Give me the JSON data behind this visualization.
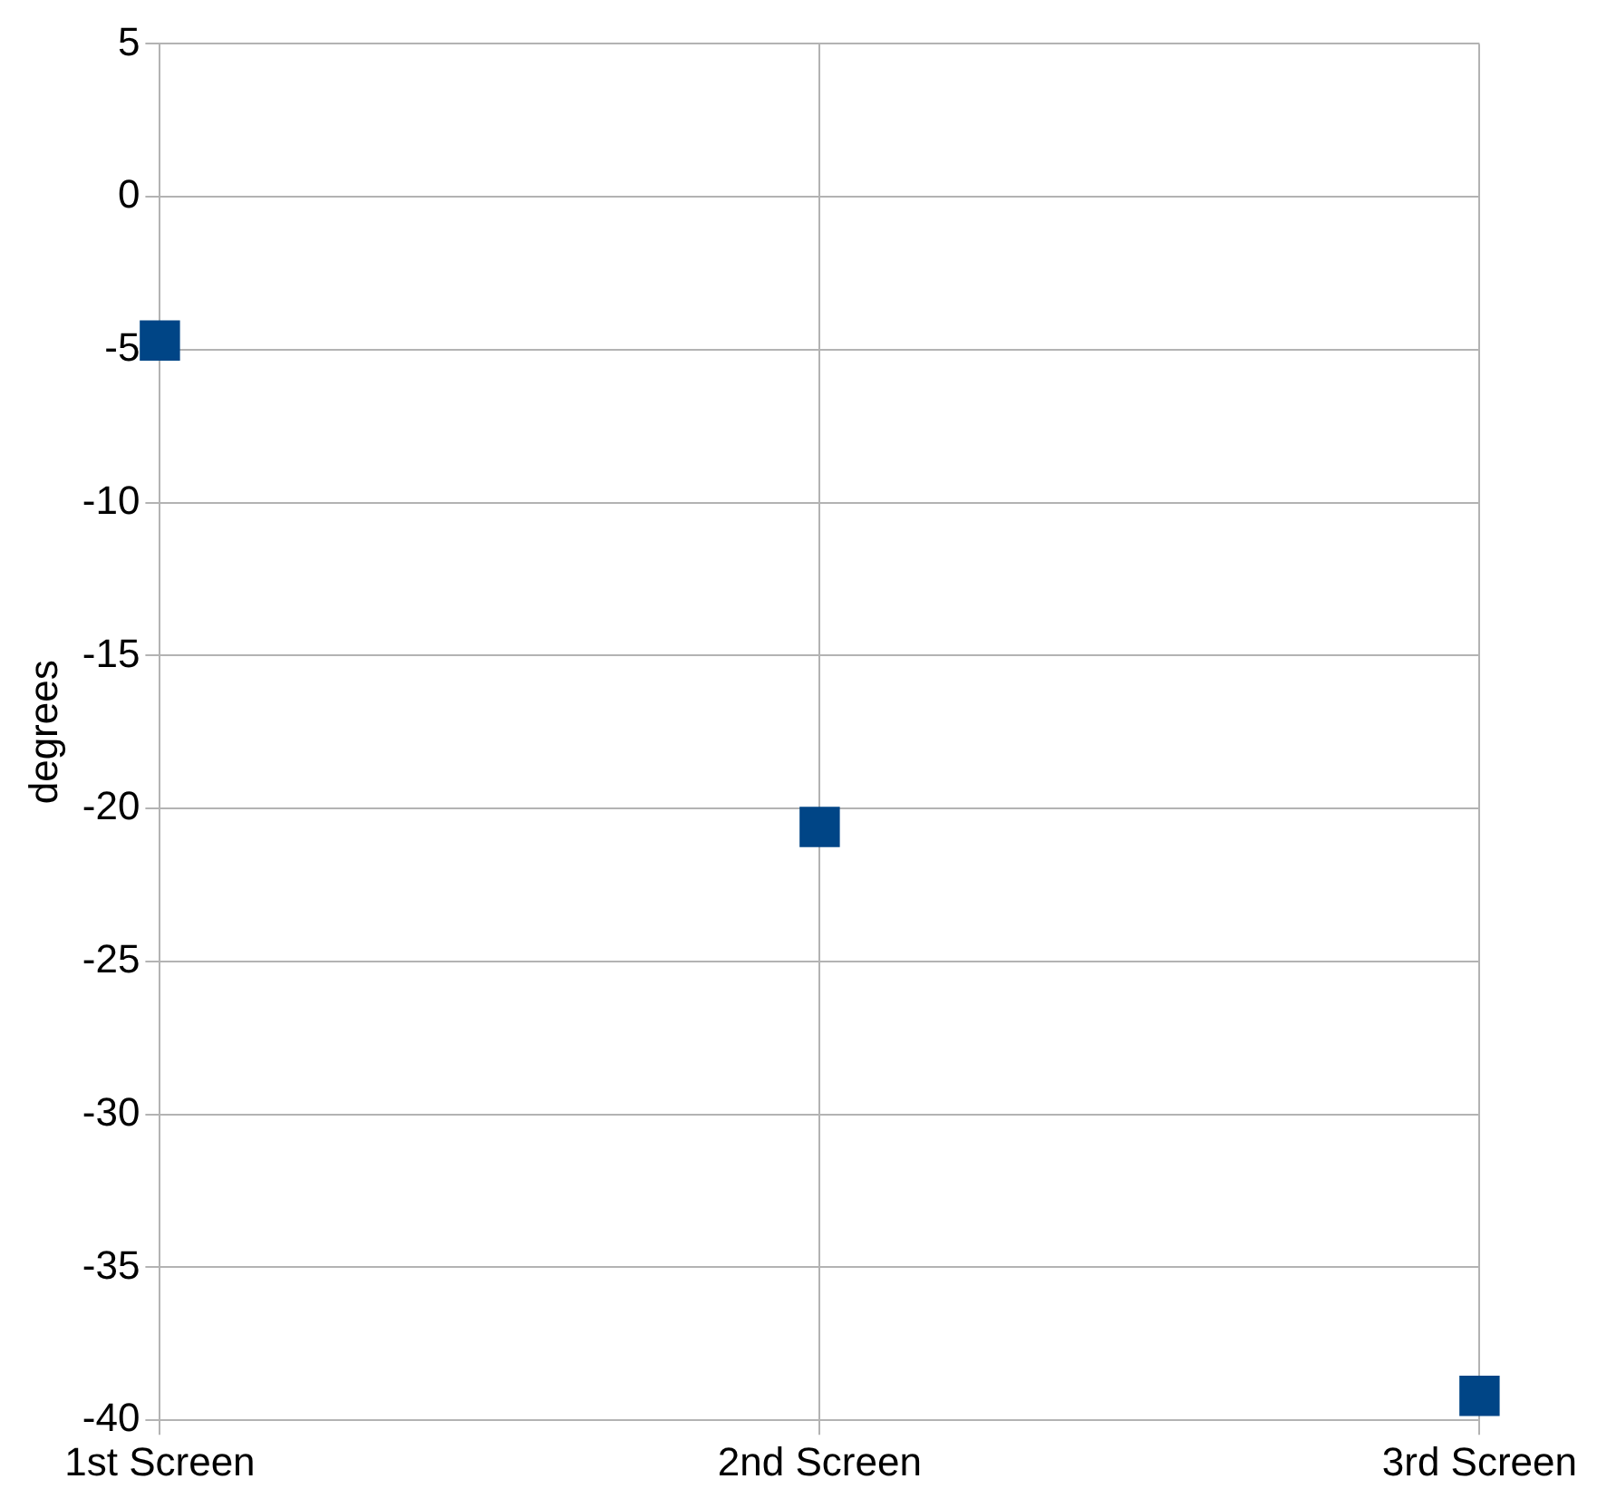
{
  "chart_data": {
    "type": "scatter",
    "ylabel": "degrees",
    "categories": [
      "1st Screen",
      "2nd Screen",
      "3rd Screen"
    ],
    "values": [
      -4.7,
      -20.6,
      -39.2
    ],
    "color": "#004586",
    "ylim": [
      -40,
      5
    ],
    "yticks": [
      -40,
      -35,
      -30,
      -25,
      -20,
      -15,
      -10,
      -5,
      0,
      5
    ],
    "grid": true,
    "marker": "square"
  }
}
